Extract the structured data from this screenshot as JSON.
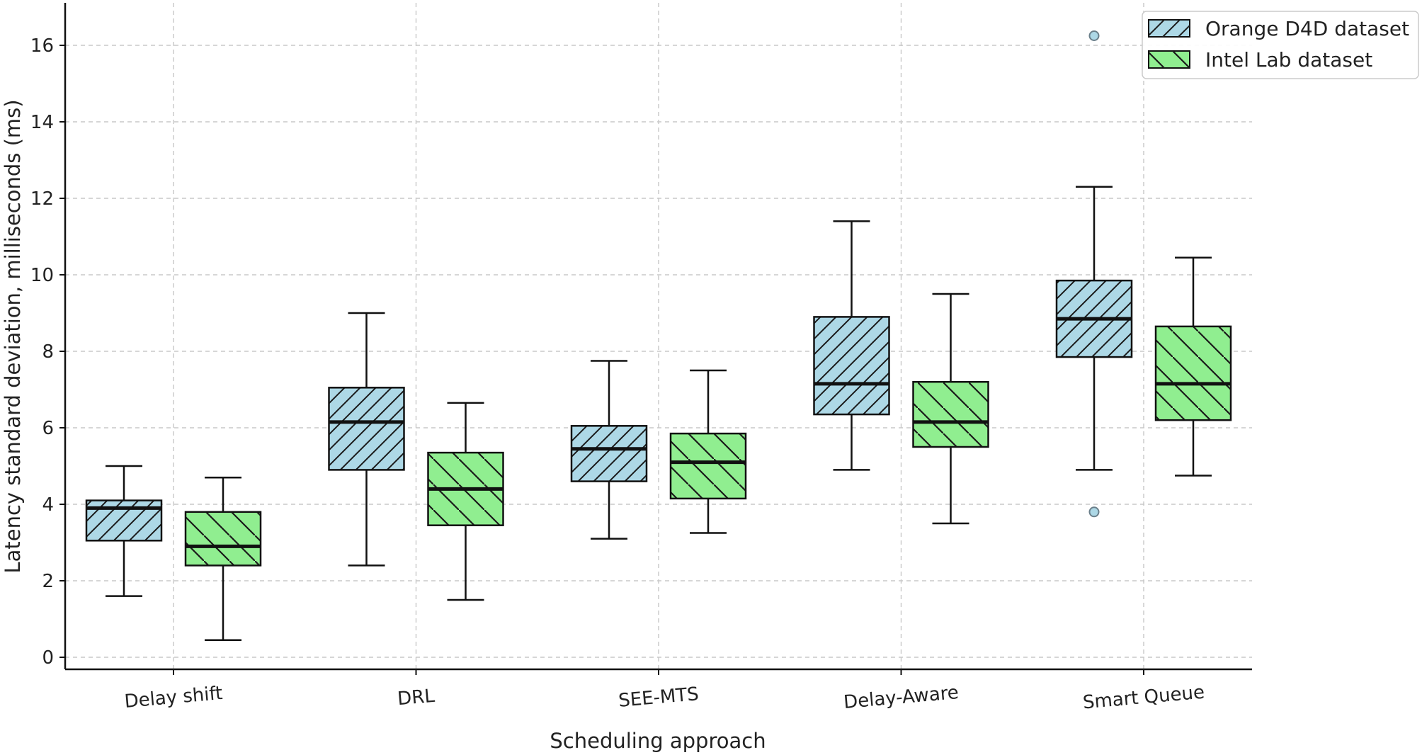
{
  "chart_data": {
    "type": "box",
    "title": "",
    "xlabel": "Scheduling approach",
    "ylabel": "Latency standard deviation, milliseconds (ms)",
    "ylim": [
      -0.3,
      17
    ],
    "yticks": [
      0,
      2,
      4,
      6,
      8,
      10,
      12,
      14,
      16
    ],
    "grid": true,
    "legend_position": "top-right",
    "categories": [
      "Delay shift",
      "DRL",
      "SEE-MTS",
      "Delay-Aware",
      "Smart Queue"
    ],
    "series": [
      {
        "name": "Orange D4D dataset",
        "color": "#add8e6",
        "hatch": "forward",
        "boxes": [
          {
            "whisker_low": 1.6,
            "q1": 3.05,
            "median": 3.9,
            "q3": 4.1,
            "whisker_high": 5.0,
            "outliers": []
          },
          {
            "whisker_low": 2.4,
            "q1": 4.9,
            "median": 6.15,
            "q3": 7.05,
            "whisker_high": 9.0,
            "outliers": []
          },
          {
            "whisker_low": 3.1,
            "q1": 4.6,
            "median": 5.45,
            "q3": 6.05,
            "whisker_high": 7.75,
            "outliers": []
          },
          {
            "whisker_low": 4.9,
            "q1": 6.35,
            "median": 7.15,
            "q3": 8.9,
            "whisker_high": 11.4,
            "outliers": []
          },
          {
            "whisker_low": 4.9,
            "q1": 7.85,
            "median": 8.85,
            "q3": 9.85,
            "whisker_high": 12.3,
            "outliers": [
              16.25,
              3.8
            ]
          }
        ]
      },
      {
        "name": "Intel Lab dataset",
        "color": "#90ee90",
        "hatch": "back",
        "boxes": [
          {
            "whisker_low": 0.45,
            "q1": 2.4,
            "median": 2.9,
            "q3": 3.8,
            "whisker_high": 4.7,
            "outliers": []
          },
          {
            "whisker_low": 1.5,
            "q1": 3.45,
            "median": 4.4,
            "q3": 5.35,
            "whisker_high": 6.65,
            "outliers": []
          },
          {
            "whisker_low": 3.25,
            "q1": 4.15,
            "median": 5.1,
            "q3": 5.85,
            "whisker_high": 7.5,
            "outliers": []
          },
          {
            "whisker_low": 3.5,
            "q1": 5.5,
            "median": 6.15,
            "q3": 7.2,
            "whisker_high": 9.5,
            "outliers": []
          },
          {
            "whisker_low": 4.75,
            "q1": 6.2,
            "median": 7.15,
            "q3": 8.65,
            "whisker_high": 10.45,
            "outliers": []
          }
        ]
      }
    ]
  }
}
